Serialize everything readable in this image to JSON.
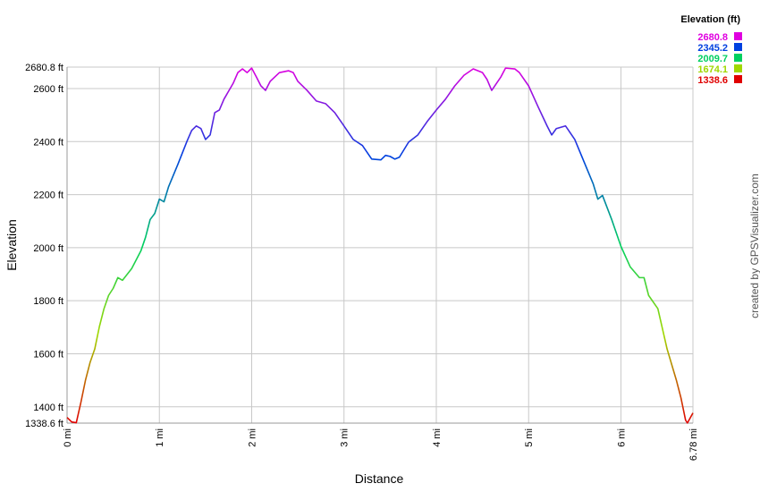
{
  "chart_data": {
    "type": "line",
    "x_label": "Distance",
    "y_label": "Elevation",
    "credit": "created by GPSVisualizer.com",
    "x": [
      0,
      0.05,
      0.1,
      0.15,
      0.2,
      0.25,
      0.3,
      0.35,
      0.4,
      0.45,
      0.5,
      0.55,
      0.6,
      0.7,
      0.8,
      0.85,
      0.9,
      0.95,
      1.0,
      1.05,
      1.1,
      1.2,
      1.3,
      1.35,
      1.4,
      1.45,
      1.5,
      1.55,
      1.6,
      1.65,
      1.7,
      1.8,
      1.85,
      1.9,
      1.95,
      2.0,
      2.05,
      2.1,
      2.15,
      2.2,
      2.3,
      2.4,
      2.45,
      2.5,
      2.6,
      2.7,
      2.8,
      2.9,
      3.0,
      3.1,
      3.2,
      3.3,
      3.4,
      3.45,
      3.5,
      3.55,
      3.6,
      3.7,
      3.8,
      3.9,
      4.0,
      4.1,
      4.2,
      4.3,
      4.4,
      4.5,
      4.55,
      4.6,
      4.7,
      4.75,
      4.85,
      4.9,
      5.0,
      5.1,
      5.2,
      5.25,
      5.3,
      5.4,
      5.5,
      5.6,
      5.7,
      5.75,
      5.8,
      5.9,
      6.0,
      6.1,
      6.2,
      6.25,
      6.3,
      6.4,
      6.5,
      6.6,
      6.65,
      6.7,
      6.72,
      6.78
    ],
    "values": [
      1360,
      1343,
      1340,
      1417,
      1501,
      1568,
      1618,
      1702,
      1770,
      1820,
      1847,
      1887,
      1877,
      1921,
      1988,
      2039,
      2106,
      2129,
      2183,
      2173,
      2230,
      2314,
      2402,
      2442,
      2459,
      2449,
      2408,
      2425,
      2509,
      2519,
      2560,
      2620,
      2660,
      2674,
      2660,
      2677,
      2644,
      2610,
      2593,
      2627,
      2660,
      2667,
      2660,
      2627,
      2593,
      2553,
      2543,
      2509,
      2459,
      2408,
      2385,
      2334,
      2331,
      2348,
      2344,
      2334,
      2341,
      2398,
      2425,
      2475,
      2519,
      2560,
      2610,
      2650,
      2674,
      2660,
      2634,
      2593,
      2644,
      2677,
      2674,
      2660,
      2610,
      2533,
      2459,
      2425,
      2449,
      2459,
      2408,
      2324,
      2240,
      2183,
      2197,
      2106,
      2005,
      1928,
      1887,
      1887,
      1820,
      1770,
      1618,
      1501,
      1434,
      1350,
      1339,
      1377
    ],
    "xlim": [
      0,
      6.78
    ],
    "xticks": [
      {
        "value": 0,
        "label": "0 mi"
      },
      {
        "value": 1,
        "label": "1 mi"
      },
      {
        "value": 2,
        "label": "2 mi"
      },
      {
        "value": 3,
        "label": "3 mi"
      },
      {
        "value": 4,
        "label": "4 mi"
      },
      {
        "value": 5,
        "label": "5 mi"
      },
      {
        "value": 6,
        "label": "6 mi"
      },
      {
        "value": 6.78,
        "label": "6.78 mi"
      }
    ],
    "ylim": [
      1338.6,
      2680.8
    ],
    "yticks": [
      {
        "value": 1338.6,
        "label": "1338.6 ft"
      },
      {
        "value": 1400,
        "label": "1400 ft"
      },
      {
        "value": 1600,
        "label": "1600 ft"
      },
      {
        "value": 1800,
        "label": "1800 ft"
      },
      {
        "value": 2000,
        "label": "2000 ft"
      },
      {
        "value": 2200,
        "label": "2200 ft"
      },
      {
        "value": 2400,
        "label": "2400 ft"
      },
      {
        "value": 2600,
        "label": "2600 ft"
      },
      {
        "value": 2680.8,
        "label": "2680.8 ft"
      }
    ],
    "grid": true,
    "color_scale": {
      "title": "Elevation (ft)",
      "stops": [
        {
          "value": 2680.8,
          "color": "#e000e0"
        },
        {
          "value": 2345.2,
          "color": "#0040e0"
        },
        {
          "value": 2009.7,
          "color": "#00d060"
        },
        {
          "value": 1674.1,
          "color": "#a0d800"
        },
        {
          "value": 1338.6,
          "color": "#e00000"
        }
      ]
    }
  }
}
